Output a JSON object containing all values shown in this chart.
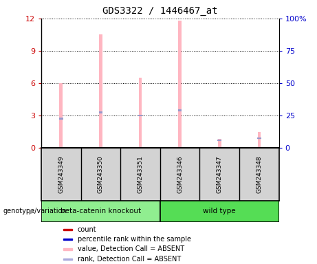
{
  "title": "GDS3322 / 1446467_at",
  "samples": [
    "GSM243349",
    "GSM243350",
    "GSM243351",
    "GSM243346",
    "GSM243347",
    "GSM243348"
  ],
  "pink_values": [
    6.0,
    10.5,
    6.5,
    11.8,
    0.8,
    1.5
  ],
  "blue_values": [
    2.7,
    3.3,
    3.0,
    3.5,
    0.7,
    0.9
  ],
  "ylim_left": [
    0,
    12
  ],
  "ylim_right": [
    0,
    100
  ],
  "yticks_left": [
    0,
    3,
    6,
    9,
    12
  ],
  "yticks_right": [
    0,
    25,
    50,
    75,
    100
  ],
  "yticklabels_right": [
    "0",
    "25",
    "50",
    "75",
    "100%"
  ],
  "left_color": "#CC0000",
  "right_color": "#0000CC",
  "pink_color": "#FFB6C1",
  "blue_color": "#9999CC",
  "group_info": [
    {
      "name": "beta-catenin knockout",
      "start": 0,
      "end": 2,
      "color": "#90EE90"
    },
    {
      "name": "wild type",
      "start": 3,
      "end": 5,
      "color": "#55DD55"
    }
  ],
  "legend_items": [
    {
      "color": "#CC0000",
      "label": "count"
    },
    {
      "color": "#0000CC",
      "label": "percentile rank within the sample"
    },
    {
      "color": "#FFB6C1",
      "label": "value, Detection Call = ABSENT"
    },
    {
      "color": "#AAAADD",
      "label": "rank, Detection Call = ABSENT"
    }
  ]
}
